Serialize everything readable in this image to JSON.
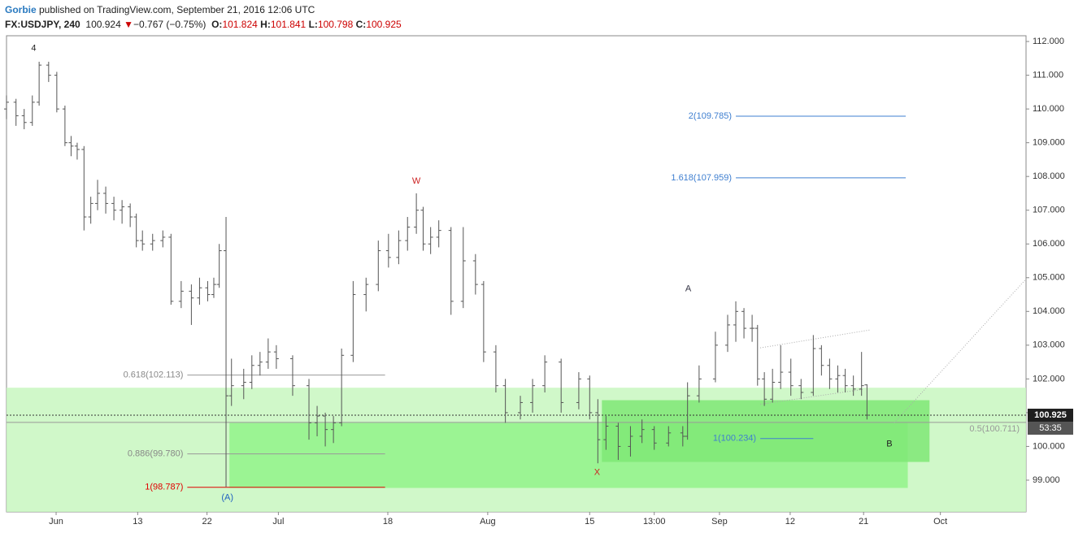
{
  "header": {
    "author": "Gorbie",
    "published": " published on TradingView.com, September 21, 2016 12:06 UTC",
    "symbol": "FX:USDJPY, 240",
    "last": "100.924",
    "arrow": "▼",
    "change": "−0.767 (−0.75%)",
    "o_label": "O:",
    "o": "101.824",
    "h_label": "H:",
    "h": "101.841",
    "l_label": "L:",
    "l": "100.798",
    "c_label": "C:",
    "c": "100.925"
  },
  "chart_data": {
    "type": "ohlc",
    "color": "#555555",
    "xlim": [
      0,
      150
    ],
    "ylim": [
      98.06,
      112.17
    ],
    "xticks": [
      {
        "value": 7.3,
        "label": "Jun"
      },
      {
        "value": 19.3,
        "label": "13"
      },
      {
        "value": 29.5,
        "label": "22"
      },
      {
        "value": 40,
        "label": "Jul"
      },
      {
        "value": 56.1,
        "label": "18"
      },
      {
        "value": 70.8,
        "label": "Aug"
      },
      {
        "value": 85.8,
        "label": "15"
      },
      {
        "value": 95.3,
        "label": "13:00"
      },
      {
        "value": 104.9,
        "label": "Sep"
      },
      {
        "value": 115.3,
        "label": "12"
      },
      {
        "value": 126.1,
        "label": "21"
      },
      {
        "value": 137.4,
        "label": "Oct"
      }
    ],
    "yticks": [
      {
        "value": 99,
        "label": "99.000"
      },
      {
        "value": 100,
        "label": "100.000"
      },
      {
        "value": 101,
        "label": "101.000"
      },
      {
        "value": 102,
        "label": "102.000"
      },
      {
        "value": 103,
        "label": "103.000"
      },
      {
        "value": 104,
        "label": "104.000"
      },
      {
        "value": 105,
        "label": "105.000"
      },
      {
        "value": 106,
        "label": "106.000"
      },
      {
        "value": 107,
        "label": "107.000"
      },
      {
        "value": 108,
        "label": "108.000"
      },
      {
        "value": 109,
        "label": "109.000"
      },
      {
        "value": 110,
        "label": "110.000"
      },
      {
        "value": 111,
        "label": "111.000"
      },
      {
        "value": 112,
        "label": "112.000"
      }
    ],
    "bars": [
      {
        "x": 0,
        "o": 110.0,
        "h": 110.4,
        "l": 109.7,
        "c": 110.2
      },
      {
        "x": 1.4,
        "o": 110.2,
        "h": 110.3,
        "l": 109.5,
        "c": 109.8
      },
      {
        "x": 2.6,
        "o": 109.8,
        "h": 110.0,
        "l": 109.4,
        "c": 109.6
      },
      {
        "x": 3.8,
        "o": 109.6,
        "h": 110.4,
        "l": 109.5,
        "c": 110.2
      },
      {
        "x": 4.8,
        "o": 110.2,
        "h": 111.4,
        "l": 110.1,
        "c": 111.3
      },
      {
        "x": 6.2,
        "o": 111.3,
        "h": 111.4,
        "l": 110.8,
        "c": 111.0
      },
      {
        "x": 7.4,
        "o": 111.0,
        "h": 111.1,
        "l": 109.9,
        "c": 110.0
      },
      {
        "x": 8.6,
        "o": 110.0,
        "h": 110.1,
        "l": 108.9,
        "c": 109.0
      },
      {
        "x": 9.5,
        "o": 109.0,
        "h": 109.2,
        "l": 108.6,
        "c": 108.9
      },
      {
        "x": 10.4,
        "o": 108.9,
        "h": 109.0,
        "l": 108.5,
        "c": 108.8
      },
      {
        "x": 11.4,
        "o": 108.8,
        "h": 108.9,
        "l": 106.4,
        "c": 106.8
      },
      {
        "x": 12.4,
        "o": 106.8,
        "h": 107.4,
        "l": 106.6,
        "c": 107.2
      },
      {
        "x": 13.4,
        "o": 107.2,
        "h": 107.9,
        "l": 107.0,
        "c": 107.5
      },
      {
        "x": 14.6,
        "o": 107.5,
        "h": 107.7,
        "l": 106.9,
        "c": 107.2
      },
      {
        "x": 15.8,
        "o": 107.2,
        "h": 107.4,
        "l": 106.7,
        "c": 107.0
      },
      {
        "x": 17,
        "o": 107.0,
        "h": 107.3,
        "l": 106.6,
        "c": 107.1
      },
      {
        "x": 18.2,
        "o": 107.1,
        "h": 107.2,
        "l": 106.5,
        "c": 106.8
      },
      {
        "x": 19.1,
        "o": 106.8,
        "h": 106.9,
        "l": 105.9,
        "c": 106.1
      },
      {
        "x": 20,
        "o": 106.1,
        "h": 106.4,
        "l": 105.8,
        "c": 106.0
      },
      {
        "x": 21.5,
        "o": 106.0,
        "h": 106.3,
        "l": 105.8,
        "c": 106.1
      },
      {
        "x": 23,
        "o": 106.1,
        "h": 106.4,
        "l": 105.9,
        "c": 106.2
      },
      {
        "x": 24.2,
        "o": 106.2,
        "h": 106.3,
        "l": 104.2,
        "c": 104.3
      },
      {
        "x": 25.7,
        "o": 104.3,
        "h": 104.9,
        "l": 104.1,
        "c": 104.6
      },
      {
        "x": 27.2,
        "o": 104.6,
        "h": 104.8,
        "l": 103.6,
        "c": 104.4
      },
      {
        "x": 28.4,
        "o": 104.4,
        "h": 105.0,
        "l": 104.2,
        "c": 104.7
      },
      {
        "x": 29.6,
        "o": 104.7,
        "h": 104.9,
        "l": 104.3,
        "c": 104.5
      },
      {
        "x": 30.5,
        "o": 104.5,
        "h": 105.0,
        "l": 104.4,
        "c": 104.8
      },
      {
        "x": 31.3,
        "o": 104.8,
        "h": 106.0,
        "l": 104.7,
        "c": 105.8
      },
      {
        "x": 32.3,
        "o": 105.8,
        "h": 106.8,
        "l": 98.8,
        "c": 101.5
      },
      {
        "x": 33.1,
        "o": 101.5,
        "h": 102.6,
        "l": 101.2,
        "c": 101.8
      },
      {
        "x": 34.9,
        "o": 101.8,
        "h": 102.3,
        "l": 101.4,
        "c": 101.9
      },
      {
        "x": 36.1,
        "o": 101.9,
        "h": 102.7,
        "l": 101.7,
        "c": 102.4
      },
      {
        "x": 37.3,
        "o": 102.4,
        "h": 102.8,
        "l": 102.1,
        "c": 102.5
      },
      {
        "x": 38.5,
        "o": 102.5,
        "h": 103.2,
        "l": 102.3,
        "c": 102.8
      },
      {
        "x": 39.7,
        "o": 102.8,
        "h": 103.0,
        "l": 102.3,
        "c": 102.6
      },
      {
        "x": 42.1,
        "o": 102.6,
        "h": 102.7,
        "l": 101.5,
        "c": 101.8
      },
      {
        "x": 44.5,
        "o": 101.8,
        "h": 102.0,
        "l": 100.2,
        "c": 100.7
      },
      {
        "x": 45.7,
        "o": 100.7,
        "h": 101.2,
        "l": 100.3,
        "c": 100.9
      },
      {
        "x": 46.9,
        "o": 100.9,
        "h": 101.0,
        "l": 100.0,
        "c": 100.5
      },
      {
        "x": 48.1,
        "o": 100.5,
        "h": 100.9,
        "l": 100.1,
        "c": 100.7
      },
      {
        "x": 49.3,
        "o": 100.7,
        "h": 102.9,
        "l": 100.6,
        "c": 102.7
      },
      {
        "x": 51,
        "o": 102.7,
        "h": 104.9,
        "l": 102.5,
        "c": 104.5
      },
      {
        "x": 52.9,
        "o": 104.5,
        "h": 105.0,
        "l": 104.0,
        "c": 104.8
      },
      {
        "x": 54.7,
        "o": 104.8,
        "h": 106.1,
        "l": 104.6,
        "c": 105.8
      },
      {
        "x": 56.2,
        "o": 105.8,
        "h": 106.3,
        "l": 105.3,
        "c": 105.6
      },
      {
        "x": 57.7,
        "o": 105.6,
        "h": 106.4,
        "l": 105.4,
        "c": 106.1
      },
      {
        "x": 59,
        "o": 106.1,
        "h": 106.8,
        "l": 105.8,
        "c": 106.5
      },
      {
        "x": 60.3,
        "o": 106.5,
        "h": 107.5,
        "l": 106.3,
        "c": 107.0
      },
      {
        "x": 61.3,
        "o": 107.0,
        "h": 107.1,
        "l": 105.8,
        "c": 106.0
      },
      {
        "x": 62.4,
        "o": 106.0,
        "h": 106.5,
        "l": 105.7,
        "c": 106.2
      },
      {
        "x": 63.6,
        "o": 106.2,
        "h": 106.7,
        "l": 105.9,
        "c": 106.4
      },
      {
        "x": 65.4,
        "o": 106.4,
        "h": 106.5,
        "l": 103.9,
        "c": 104.3
      },
      {
        "x": 67.2,
        "o": 104.3,
        "h": 106.5,
        "l": 104.1,
        "c": 105.5
      },
      {
        "x": 69,
        "o": 105.5,
        "h": 105.7,
        "l": 104.5,
        "c": 104.8
      },
      {
        "x": 70.2,
        "o": 104.8,
        "h": 104.9,
        "l": 102.5,
        "c": 102.8
      },
      {
        "x": 72,
        "o": 102.8,
        "h": 103.0,
        "l": 101.6,
        "c": 101.8
      },
      {
        "x": 73.4,
        "o": 101.8,
        "h": 102.0,
        "l": 100.7,
        "c": 101.0
      },
      {
        "x": 75.6,
        "o": 101.0,
        "h": 101.5,
        "l": 100.8,
        "c": 101.3
      },
      {
        "x": 77.4,
        "o": 101.3,
        "h": 102.0,
        "l": 101.0,
        "c": 101.8
      },
      {
        "x": 79.2,
        "o": 101.8,
        "h": 102.7,
        "l": 101.6,
        "c": 102.5
      },
      {
        "x": 81.6,
        "o": 102.5,
        "h": 102.6,
        "l": 101.0,
        "c": 101.3
      },
      {
        "x": 84.2,
        "o": 101.3,
        "h": 102.2,
        "l": 101.1,
        "c": 102.0
      },
      {
        "x": 85.8,
        "o": 102.0,
        "h": 102.1,
        "l": 100.8,
        "c": 101.0
      },
      {
        "x": 87,
        "o": 101.0,
        "h": 101.4,
        "l": 99.5,
        "c": 100.2
      },
      {
        "x": 88.2,
        "o": 100.2,
        "h": 100.9,
        "l": 99.9,
        "c": 100.6
      },
      {
        "x": 90,
        "o": 100.6,
        "h": 100.7,
        "l": 99.6,
        "c": 100.0
      },
      {
        "x": 91.8,
        "o": 100.0,
        "h": 100.6,
        "l": 99.7,
        "c": 100.3
      },
      {
        "x": 93.5,
        "o": 100.3,
        "h": 100.8,
        "l": 100.1,
        "c": 100.5
      },
      {
        "x": 95.3,
        "o": 100.5,
        "h": 100.6,
        "l": 99.9,
        "c": 100.1
      },
      {
        "x": 97.4,
        "o": 100.1,
        "h": 100.6,
        "l": 100.0,
        "c": 100.4
      },
      {
        "x": 99.5,
        "o": 100.4,
        "h": 100.6,
        "l": 100.0,
        "c": 100.3
      },
      {
        "x": 100.2,
        "o": 100.3,
        "h": 101.9,
        "l": 100.2,
        "c": 101.5
      },
      {
        "x": 101.9,
        "o": 101.5,
        "h": 102.4,
        "l": 101.3,
        "c": 102.0
      },
      {
        "x": 104.3,
        "o": 102.0,
        "h": 103.4,
        "l": 101.9,
        "c": 103.0
      },
      {
        "x": 106.1,
        "o": 103.0,
        "h": 103.9,
        "l": 102.8,
        "c": 103.6
      },
      {
        "x": 107.3,
        "o": 103.6,
        "h": 104.3,
        "l": 103.1,
        "c": 104.0
      },
      {
        "x": 108.5,
        "o": 104.0,
        "h": 104.1,
        "l": 103.2,
        "c": 103.5
      },
      {
        "x": 109.7,
        "o": 103.5,
        "h": 103.9,
        "l": 103.1,
        "c": 103.5
      },
      {
        "x": 110.5,
        "o": 103.5,
        "h": 103.6,
        "l": 101.8,
        "c": 102.0
      },
      {
        "x": 111.5,
        "o": 102.0,
        "h": 102.2,
        "l": 101.2,
        "c": 101.4
      },
      {
        "x": 112.7,
        "o": 101.4,
        "h": 102.3,
        "l": 101.3,
        "c": 101.9
      },
      {
        "x": 113.9,
        "o": 101.9,
        "h": 103.0,
        "l": 101.7,
        "c": 102.2
      },
      {
        "x": 115.4,
        "o": 102.2,
        "h": 102.6,
        "l": 101.5,
        "c": 101.8
      },
      {
        "x": 116.9,
        "o": 101.8,
        "h": 102.0,
        "l": 101.4,
        "c": 101.6
      },
      {
        "x": 118.7,
        "o": 101.6,
        "h": 103.3,
        "l": 101.5,
        "c": 102.9
      },
      {
        "x": 119.9,
        "o": 102.9,
        "h": 103.0,
        "l": 102.1,
        "c": 102.4
      },
      {
        "x": 121.1,
        "o": 102.4,
        "h": 102.6,
        "l": 101.7,
        "c": 102.0
      },
      {
        "x": 122.3,
        "o": 102.0,
        "h": 102.4,
        "l": 101.6,
        "c": 102.1
      },
      {
        "x": 123.4,
        "o": 102.1,
        "h": 102.3,
        "l": 101.6,
        "c": 101.8
      },
      {
        "x": 124.6,
        "o": 101.8,
        "h": 102.1,
        "l": 101.5,
        "c": 101.7
      },
      {
        "x": 125.8,
        "o": 101.7,
        "h": 102.8,
        "l": 101.5,
        "c": 101.8
      },
      {
        "x": 126.6,
        "o": 101.824,
        "h": 101.841,
        "l": 100.798,
        "c": 100.925
      }
    ],
    "zones": [
      {
        "x0": 0,
        "x1": 150,
        "y0": 101.74,
        "y1": 98.06,
        "color": "#c8f7c0"
      },
      {
        "x0": 32.8,
        "x1": 132.6,
        "y0": 100.7,
        "y1": 98.77,
        "color": "#92f38a"
      },
      {
        "x0": 87.6,
        "x1": 135.8,
        "y0": 101.37,
        "y1": 99.54,
        "color": "#7fe876"
      }
    ],
    "fib_levels": [
      {
        "label": "0.618(102.113)",
        "value": 102.113,
        "x0": 26.6,
        "x1": 55.7,
        "color": "#999999",
        "label_color": "#888888"
      },
      {
        "label": "0.886(99.780)",
        "value": 99.78,
        "x0": 26.6,
        "x1": 55.7,
        "color": "#999999",
        "label_color": "#888888"
      },
      {
        "label": "1(98.787)",
        "value": 98.787,
        "x0": 26.6,
        "x1": 55.7,
        "color": "#e00000",
        "label_color": "#e00000"
      },
      {
        "label": "2(109.785)",
        "value": 109.785,
        "x0": 107.3,
        "x1": 132.3,
        "color": "#3f7fd0",
        "label_color": "#3f7fd0"
      },
      {
        "label": "1.618(107.959)",
        "value": 107.959,
        "x0": 107.3,
        "x1": 132.3,
        "color": "#3f7fd0",
        "label_color": "#3f7fd0"
      },
      {
        "label": "1(100.234)",
        "value": 100.234,
        "x0": 110.9,
        "x1": 118.7,
        "color": "#3f7fd0",
        "label_color": "#3f7fd0"
      },
      {
        "label": "0.5(100.711)",
        "value": 100.711,
        "x0": 0,
        "x1": 150,
        "color": "#999999",
        "label_color": "#999999"
      }
    ],
    "trend_lines": [
      {
        "x0": 130.6,
        "y0": 100.7,
        "x1": 150,
        "y1": 104.96
      },
      {
        "x0": 110.9,
        "y0": 102.92,
        "x1": 127,
        "y1": 103.45
      },
      {
        "x0": 110.9,
        "y0": 101.25,
        "x1": 126,
        "y1": 101.69
      }
    ],
    "annotations": [
      {
        "text": "4",
        "x": 4,
        "y": 111.8,
        "color": "#222222"
      },
      {
        "text": "W",
        "x": 60.3,
        "y": 107.86,
        "color": "#cc2222"
      },
      {
        "text": "A",
        "x": 100.3,
        "y": 104.67,
        "color": "#333344"
      },
      {
        "text": "X",
        "x": 86.9,
        "y": 99.23,
        "color": "#cc2222"
      },
      {
        "text": "(A)",
        "x": 32.5,
        "y": 98.48,
        "color": "#2060c0"
      },
      {
        "text": "B",
        "x": 129.9,
        "y": 100.07,
        "color": "#222222"
      }
    ],
    "last_price": {
      "value": 100.925,
      "label": "100.925"
    },
    "countdown": "53:35"
  }
}
